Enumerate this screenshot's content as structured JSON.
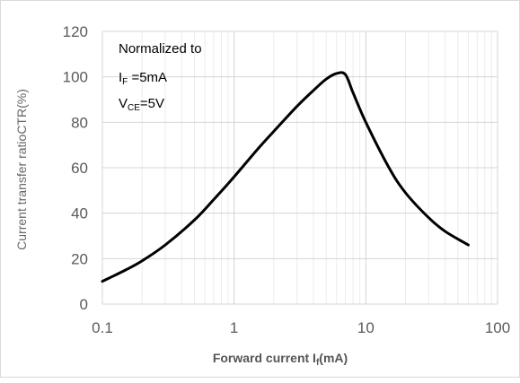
{
  "chart_data": {
    "type": "line",
    "title": "",
    "xlabel": {
      "main": "Forward current I",
      "sub": "f",
      "unit": "(mA)"
    },
    "ylabel": "Current transfer ratioCTR(%)",
    "xscale": "log",
    "xlim": [
      0.1,
      100
    ],
    "ylim": [
      0,
      120
    ],
    "x_ticks": [
      0.1,
      1,
      10,
      100
    ],
    "x_tick_labels": [
      "0.1",
      "1",
      "10",
      "100"
    ],
    "y_ticks": [
      0,
      20,
      40,
      60,
      80,
      100,
      120
    ],
    "y_tick_labels": [
      "0",
      "20",
      "40",
      "60",
      "80",
      "100",
      "120"
    ],
    "grid": true,
    "series": [
      {
        "color": "#000000",
        "x": [
          0.1,
          0.15,
          0.2,
          0.3,
          0.5,
          0.7,
          1,
          1.5,
          2,
          3,
          4,
          5,
          6,
          7,
          8,
          10,
          15,
          20,
          30,
          40,
          60
        ],
        "y": [
          10,
          15,
          19,
          26,
          37,
          46,
          56,
          68,
          76,
          87,
          94,
          99,
          101.5,
          101,
          93,
          80,
          60,
          49,
          38,
          32,
          26
        ]
      }
    ],
    "annotations": [
      {
        "text": "Normalized to"
      },
      {
        "main": "I",
        "sub": "F",
        "rest": " =5mA"
      },
      {
        "main": "V",
        "sub": "CE",
        "rest": "=5V"
      }
    ]
  }
}
